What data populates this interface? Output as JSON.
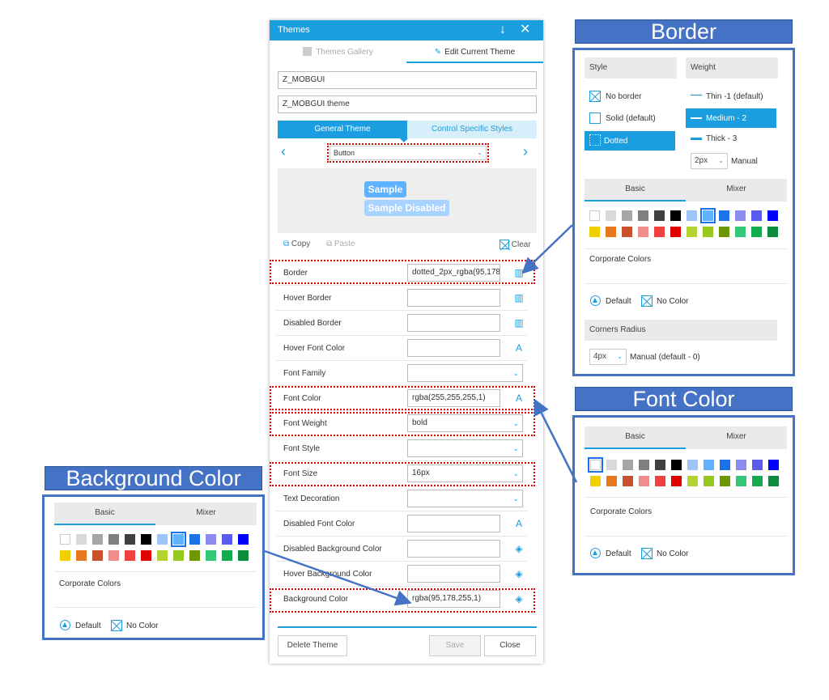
{
  "dialog": {
    "title": "Themes",
    "tabs": {
      "gallery": "Themes Gallery",
      "edit": "Edit Current Theme"
    },
    "name_value": "Z_MOBGUI",
    "description_value": "Z_MOBGUI theme",
    "theme_tabs": {
      "general": "General Theme",
      "control": "Control Specific Styles"
    },
    "control_select": "Button",
    "preview": {
      "sample": "Sample",
      "sample_disabled": "Sample Disabled"
    },
    "toolbar": {
      "copy": "Copy",
      "paste": "Paste",
      "clear": "Clear"
    },
    "properties": [
      {
        "label": "Border",
        "value": "dotted_2px_rgba(95,178"
      },
      {
        "label": "Hover Border",
        "value": ""
      },
      {
        "label": "Disabled Border",
        "value": ""
      },
      {
        "label": "Hover Font Color",
        "value": ""
      },
      {
        "label": "Font Family",
        "value": ""
      },
      {
        "label": "Font Color",
        "value": "rgba(255,255,255,1)"
      },
      {
        "label": "Font Weight",
        "value": "bold"
      },
      {
        "label": "Font Style",
        "value": ""
      },
      {
        "label": "Font Size",
        "value": "16px"
      },
      {
        "label": "Text Decoration",
        "value": ""
      },
      {
        "label": "Disabled Font Color",
        "value": ""
      },
      {
        "label": "Disabled Background Color",
        "value": ""
      },
      {
        "label": "Hover Background Color",
        "value": ""
      },
      {
        "label": "Background Color",
        "value": "rgba(95,178,255,1)"
      }
    ],
    "buttons": {
      "delete": "Delete Theme",
      "save": "Save",
      "close": "Close"
    }
  },
  "border_panel": {
    "heading": "Border",
    "style_label": "Style",
    "weight_label": "Weight",
    "styles": [
      "No border",
      "Solid (default)",
      "Dotted"
    ],
    "weights": [
      "Thin -1 (default)",
      "Medium - 2",
      "Thick - 3"
    ],
    "manual_value": "2px",
    "manual_label": "Manual",
    "tabs": {
      "basic": "Basic",
      "mixer": "Mixer"
    },
    "corporate_colors": "Corporate Colors",
    "default_label": "Default",
    "no_color_label": "No Color",
    "corners_label": "Corners Radius",
    "corners_value": "4px",
    "corners_manual": "Manual (default - 0)"
  },
  "font_color_panel": {
    "heading": "Font Color",
    "tabs": {
      "basic": "Basic",
      "mixer": "Mixer"
    },
    "corporate_colors": "Corporate Colors",
    "default_label": "Default",
    "no_color_label": "No Color"
  },
  "background_panel": {
    "heading": "Background Color",
    "tabs": {
      "basic": "Basic",
      "mixer": "Mixer"
    },
    "corporate_colors": "Corporate Colors",
    "default_label": "Default",
    "no_color_label": "No Color"
  },
  "colors": {
    "accent": "#1a9ee0",
    "panel_border": "#4472c4",
    "highlight": "#d40000",
    "palette_row1": [
      "#ffffff",
      "#d9d9d9",
      "#a6a6a6",
      "#7f7f7f",
      "#404040",
      "#000000",
      "#9fc5f8",
      "#5fb2ff",
      "#1a73e8",
      "#8c8cf0",
      "#5b5bf0",
      "#0000ff"
    ],
    "palette_row2": [
      "#f0d000",
      "#e8781e",
      "#c8502c",
      "#f08c8c",
      "#f04040",
      "#e00000",
      "#b4d232",
      "#96c81e",
      "#6e9600",
      "#32c878",
      "#14aa50",
      "#0a8c3c"
    ]
  }
}
